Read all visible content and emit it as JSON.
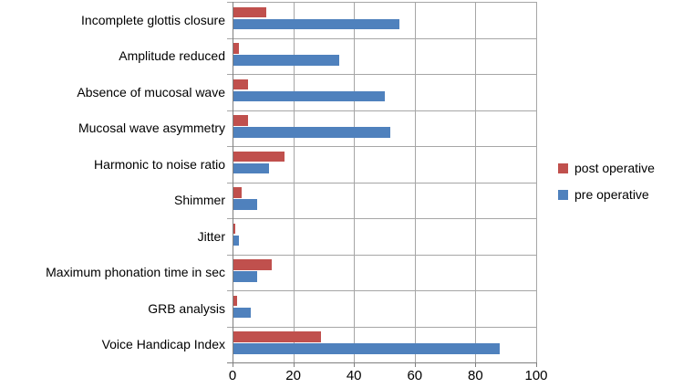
{
  "chart_data": {
    "type": "bar",
    "orientation": "horizontal",
    "title": "",
    "xlabel": "",
    "ylabel": "",
    "xlim": [
      0,
      100
    ],
    "xticks": [
      0,
      20,
      40,
      60,
      80,
      100
    ],
    "grid": true,
    "legend_position": "right",
    "categories": [
      "Incomplete glottis closure",
      "Amplitude reduced",
      "Absence of mucosal wave",
      "Mucosal wave asymmetry",
      "Harmonic to noise ratio",
      "Shimmer",
      "Jitter",
      "Maximum phonation time in sec",
      "GRB analysis",
      "Voice Handicap Index"
    ],
    "series": [
      {
        "name": "post operative",
        "color": "#C0504D",
        "values": [
          11,
          2,
          5,
          5,
          17,
          3,
          1,
          13,
          1.5,
          29
        ]
      },
      {
        "name": "pre operative",
        "color": "#4F81BD",
        "values": [
          55,
          35,
          50,
          52,
          12,
          8,
          2,
          8,
          6,
          88
        ]
      }
    ],
    "colors": {
      "gridline": "#a6a6a6",
      "axis": "#7f7f7f",
      "background": "#ffffff",
      "text": "#000000"
    }
  }
}
